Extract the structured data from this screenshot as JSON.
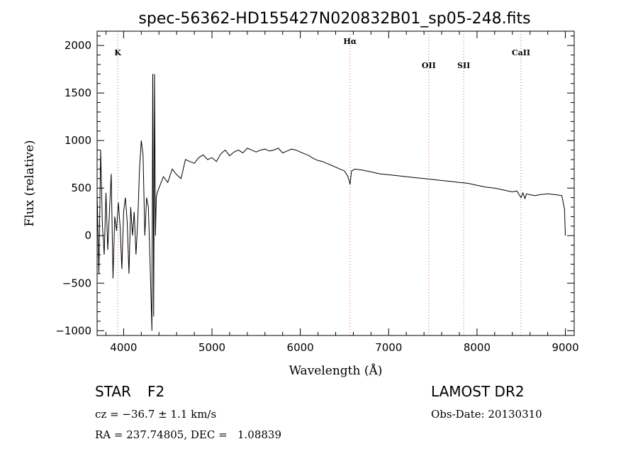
{
  "chart_data": {
    "type": "line",
    "title": "spec-56362-HD155427N020832B01_sp05-248.fits",
    "xlabel": "Wavelength (Å)",
    "ylabel": "Flux (relative)",
    "xlim": [
      3700,
      9100
    ],
    "ylim": [
      -1050,
      2150
    ],
    "xticks": [
      4000,
      5000,
      6000,
      7000,
      8000,
      9000
    ],
    "yticks": [
      -1000,
      -500,
      0,
      500,
      1000,
      1500,
      2000
    ],
    "grid": false,
    "spectral_lines": [
      {
        "label": "K",
        "x": 3934
      },
      {
        "label": "Hα",
        "x": 6563
      },
      {
        "label": "OII",
        "x": 7454
      },
      {
        "label": "SII",
        "x": 7850
      },
      {
        "label": "CaII",
        "x": 8498
      }
    ],
    "series": [
      {
        "x": [
          3700,
          3720,
          3740,
          3760,
          3780,
          3800,
          3820,
          3840,
          3860,
          3880,
          3900,
          3920,
          3940,
          3960,
          3980,
          4000,
          4020,
          4040,
          4060,
          4080,
          4100,
          4120,
          4140,
          4160,
          4180,
          4200,
          4220,
          4240,
          4260,
          4280,
          4300,
          4320,
          4330,
          4340,
          4350,
          4360,
          4370,
          4380,
          4400,
          4450,
          4500,
          4550,
          4600,
          4650,
          4700,
          4750,
          4800,
          4850,
          4900,
          4950,
          5000,
          5050,
          5100,
          5150,
          5200,
          5250,
          5300,
          5350,
          5400,
          5450,
          5500,
          5550,
          5600,
          5650,
          5700,
          5750,
          5800,
          5850,
          5900,
          5950,
          6000,
          6050,
          6100,
          6150,
          6200,
          6250,
          6300,
          6350,
          6400,
          6450,
          6500,
          6540,
          6563,
          6580,
          6620,
          6700,
          6800,
          6900,
          7000,
          7100,
          7200,
          7300,
          7400,
          7500,
          7600,
          7700,
          7800,
          7900,
          8000,
          8100,
          8200,
          8300,
          8400,
          8450,
          8498,
          8520,
          8542,
          8560,
          8600,
          8662,
          8700,
          8800,
          8900,
          8960,
          8990,
          9000
        ],
        "y": [
          450,
          -400,
          900,
          100,
          -200,
          450,
          -150,
          250,
          650,
          -450,
          200,
          50,
          350,
          100,
          -350,
          250,
          400,
          150,
          -400,
          300,
          0,
          250,
          -200,
          150,
          700,
          1000,
          850,
          0,
          400,
          300,
          -300,
          -1000,
          1700,
          -850,
          1700,
          0,
          400,
          450,
          500,
          620,
          560,
          700,
          640,
          600,
          800,
          780,
          760,
          820,
          850,
          800,
          820,
          780,
          860,
          900,
          840,
          880,
          900,
          870,
          920,
          900,
          880,
          900,
          910,
          890,
          900,
          920,
          870,
          890,
          910,
          900,
          880,
          860,
          840,
          810,
          790,
          780,
          760,
          740,
          720,
          700,
          680,
          620,
          540,
          680,
          700,
          690,
          670,
          650,
          640,
          630,
          620,
          610,
          600,
          590,
          580,
          570,
          560,
          550,
          530,
          510,
          500,
          480,
          460,
          470,
          400,
          450,
          390,
          440,
          430,
          420,
          430,
          440,
          430,
          420,
          280,
          0
        ]
      }
    ]
  },
  "footer": {
    "object_type": "STAR",
    "subclass": "F2",
    "cz": "cz = −36.7 ± 1.1 km/s",
    "coords": "RA = 237.74805, DEC =   1.08839",
    "survey": "LAMOST DR2",
    "obs_date": "Obs-Date: 20130310"
  }
}
